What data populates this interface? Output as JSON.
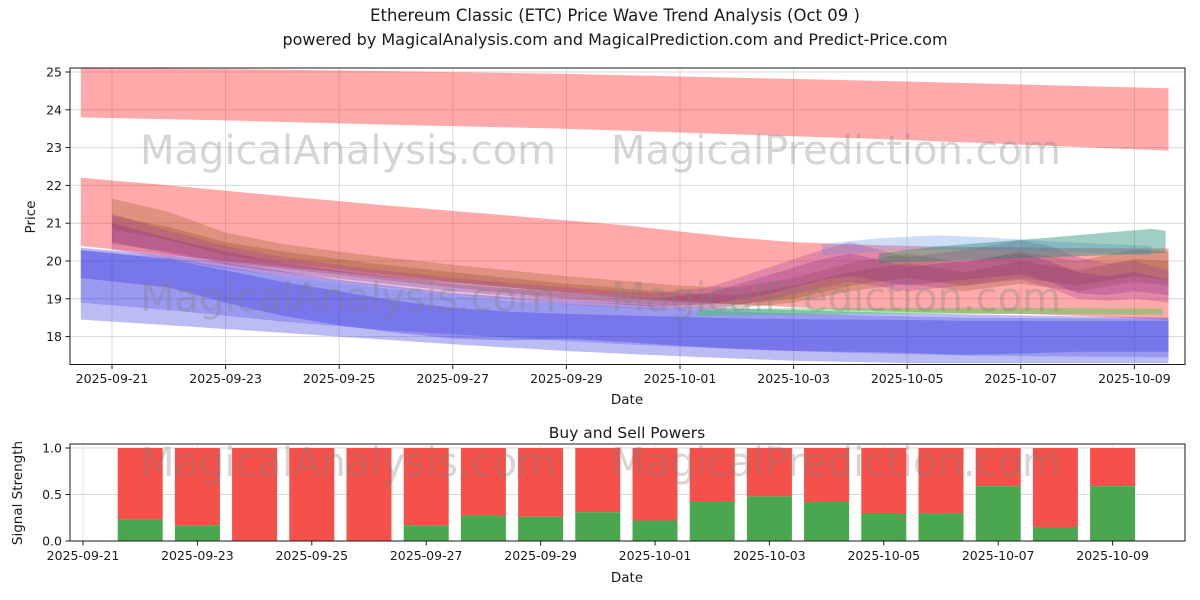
{
  "title": {
    "line1": "Ethereum Classic (ETC) Price Wave Trend Analysis (Oct 09 )",
    "line2": "powered by MagicalAnalysis.com and MagicalPrediction.com and Predict-Price.com"
  },
  "watermark": {
    "left": "MagicalAnalysis.com",
    "right": "MagicalPrediction.com"
  },
  "chart_data": [
    {
      "type": "area",
      "name": "price-wave-bands",
      "ylabel": "Price",
      "xlabel": "Date",
      "ylim": [
        17.25,
        25.1
      ],
      "yticks": [
        18,
        19,
        20,
        21,
        22,
        23,
        24,
        25
      ],
      "day_zero_date": "2025-09-21",
      "xtick_days": [
        0,
        2,
        4,
        6,
        8,
        10,
        12,
        14,
        16,
        18
      ],
      "xtick_labels": [
        "2025-09-21",
        "2025-09-23",
        "2025-09-25",
        "2025-09-27",
        "2025-09-29",
        "2025-10-01",
        "2025-10-03",
        "2025-10-05",
        "2025-10-07",
        "2025-10-09"
      ],
      "grid": true,
      "bands": [
        {
          "name": "upper-red-band",
          "color": "#ff1414",
          "opacity": 0.36,
          "points": [
            [
              -0.55,
              23.8,
              25.1
            ],
            [
              2,
              23.72,
              25.08
            ],
            [
              5,
              23.6,
              25.02
            ],
            [
              8,
              23.5,
              24.95
            ],
            [
              11,
              23.35,
              24.85
            ],
            [
              14,
              23.2,
              24.75
            ],
            [
              16.5,
              23.05,
              24.65
            ],
            [
              18.6,
              22.92,
              24.57
            ]
          ]
        },
        {
          "name": "mid-red-band",
          "color": "#ff1414",
          "opacity": 0.36,
          "points": [
            [
              -0.55,
              20.4,
              22.2
            ],
            [
              1,
              20.15,
              22.0
            ],
            [
              3,
              19.85,
              21.72
            ],
            [
              5,
              19.55,
              21.45
            ],
            [
              7,
              19.3,
              21.2
            ],
            [
              9,
              19.05,
              20.95
            ],
            [
              10,
              18.95,
              20.78
            ],
            [
              11,
              18.85,
              20.62
            ],
            [
              12,
              18.78,
              20.5
            ],
            [
              13,
              18.7,
              20.44
            ],
            [
              14,
              18.65,
              20.4
            ],
            [
              15,
              18.62,
              20.37
            ],
            [
              16,
              18.6,
              20.36
            ],
            [
              17,
              18.55,
              20.34
            ],
            [
              18.6,
              18.45,
              20.33
            ]
          ]
        },
        {
          "name": "outer-blue-band",
          "color": "#2222dd",
          "opacity": 0.3,
          "points": [
            [
              -0.55,
              18.45,
              20.35
            ],
            [
              1,
              18.3,
              20.15
            ],
            [
              2.5,
              18.15,
              19.85
            ],
            [
              4,
              18.0,
              19.5
            ],
            [
              6,
              17.8,
              19.15
            ],
            [
              8,
              17.62,
              18.95
            ],
            [
              10,
              17.48,
              18.8
            ],
            [
              12,
              17.36,
              18.7
            ],
            [
              14,
              17.3,
              18.62
            ],
            [
              16,
              17.3,
              18.56
            ],
            [
              18.6,
              17.3,
              18.5
            ]
          ]
        },
        {
          "name": "mid-blue-band",
          "color": "#2222dd",
          "opacity": 0.22,
          "points": [
            [
              -0.55,
              18.9,
              20.3
            ],
            [
              1,
              18.7,
              20.08
            ],
            [
              3,
              18.4,
              19.6
            ],
            [
              5,
              18.15,
              19.25
            ],
            [
              7,
              17.97,
              18.95
            ],
            [
              9,
              17.8,
              18.78
            ],
            [
              11,
              17.67,
              18.66
            ],
            [
              13,
              17.57,
              18.57
            ],
            [
              15,
              17.5,
              18.5
            ],
            [
              18.6,
              17.45,
              18.47
            ]
          ]
        },
        {
          "name": "inner-blue-band",
          "color": "#2222dd",
          "opacity": 0.28,
          "points": [
            [
              -0.55,
              19.55,
              20.28
            ],
            [
              1,
              19.3,
              20.05
            ],
            [
              2,
              18.9,
              19.75
            ],
            [
              3,
              18.55,
              19.45
            ],
            [
              4,
              18.3,
              19.2
            ],
            [
              5,
              18.1,
              18.95
            ],
            [
              6,
              17.95,
              18.76
            ],
            [
              7,
              17.9,
              18.66
            ],
            [
              8,
              17.94,
              18.6
            ],
            [
              9,
              17.86,
              18.56
            ],
            [
              10,
              17.76,
              18.52
            ],
            [
              11,
              17.68,
              18.48
            ],
            [
              12,
              17.62,
              18.46
            ],
            [
              13,
              17.6,
              18.45
            ],
            [
              14,
              17.57,
              18.44
            ],
            [
              15,
              17.52,
              18.42
            ],
            [
              16,
              17.55,
              18.42
            ],
            [
              17,
              17.6,
              18.41
            ],
            [
              18.6,
              17.6,
              18.42
            ]
          ]
        },
        {
          "name": "green-flat-band",
          "color": "#2ecc40",
          "opacity": 0.4,
          "points": [
            [
              10.3,
              18.55,
              18.73
            ],
            [
              12,
              18.58,
              18.75
            ],
            [
              14,
              18.6,
              18.76
            ],
            [
              16,
              18.6,
              18.76
            ],
            [
              18.5,
              18.58,
              18.74
            ]
          ]
        },
        {
          "name": "brown-band-outer",
          "color": "#9c5a1e",
          "opacity": 0.3,
          "points": [
            [
              0,
              20.85,
              21.65
            ],
            [
              1,
              20.55,
              21.3
            ],
            [
              2,
              20.15,
              20.75
            ],
            [
              3,
              19.95,
              20.45
            ],
            [
              4.5,
              19.7,
              20.15
            ],
            [
              6,
              19.45,
              19.9
            ],
            [
              8,
              19.15,
              19.6
            ],
            [
              10,
              18.9,
              19.35
            ],
            [
              11,
              18.85,
              19.3
            ],
            [
              12,
              19.0,
              19.55
            ],
            [
              13,
              19.35,
              19.95
            ],
            [
              14,
              19.55,
              20.2
            ],
            [
              15,
              19.35,
              19.95
            ],
            [
              16,
              19.55,
              20.25
            ],
            [
              17,
              19.35,
              20.0
            ],
            [
              18,
              19.6,
              20.3
            ],
            [
              18.6,
              19.5,
              20.25
            ]
          ]
        },
        {
          "name": "brown-band-inner",
          "color": "#7a4515",
          "opacity": 0.26,
          "points": [
            [
              0,
              20.45,
              21.2
            ],
            [
              1,
              20.25,
              20.9
            ],
            [
              2,
              19.95,
              20.5
            ],
            [
              3,
              19.8,
              20.25
            ],
            [
              4.5,
              19.55,
              19.95
            ],
            [
              6,
              19.3,
              19.7
            ],
            [
              8,
              19.0,
              19.4
            ],
            [
              10,
              18.8,
              19.15
            ],
            [
              11,
              18.75,
              19.1
            ],
            [
              12,
              18.9,
              19.35
            ],
            [
              13,
              19.2,
              19.7
            ],
            [
              14,
              19.4,
              19.95
            ],
            [
              15,
              19.2,
              19.7
            ],
            [
              16,
              19.4,
              20.0
            ],
            [
              17,
              19.2,
              19.75
            ],
            [
              18,
              19.45,
              20.05
            ],
            [
              18.6,
              19.35,
              20.0
            ]
          ]
        },
        {
          "name": "purple-band-outer",
          "color": "#a637a0",
          "opacity": 0.3,
          "points": [
            [
              0,
              20.3,
              21.25
            ],
            [
              1,
              20.05,
              20.8
            ],
            [
              2,
              19.8,
              20.4
            ],
            [
              3,
              19.6,
              20.1
            ],
            [
              4.5,
              19.35,
              19.8
            ],
            [
              6,
              19.1,
              19.55
            ],
            [
              8,
              18.85,
              19.3
            ],
            [
              9.5,
              18.72,
              19.15
            ],
            [
              10.5,
              18.72,
              19.3
            ],
            [
              11.5,
              18.95,
              19.8
            ],
            [
              12.5,
              19.3,
              20.3
            ],
            [
              13,
              19.45,
              20.5
            ],
            [
              14,
              19.2,
              20.1
            ],
            [
              15,
              19.35,
              20.3
            ],
            [
              16,
              19.5,
              20.55
            ],
            [
              16.5,
              19.3,
              20.4
            ],
            [
              17,
              19.0,
              20.1
            ],
            [
              17.5,
              18.95,
              19.95
            ],
            [
              18,
              19.0,
              20.0
            ],
            [
              18.6,
              18.9,
              19.75
            ]
          ]
        },
        {
          "name": "purple-band-inner",
          "color": "#8a2f8a",
          "opacity": 0.3,
          "points": [
            [
              0,
              20.5,
              21.0
            ],
            [
              1,
              20.2,
              20.6
            ],
            [
              2,
              19.9,
              20.25
            ],
            [
              3,
              19.7,
              19.95
            ],
            [
              4.5,
              19.45,
              19.65
            ],
            [
              6,
              19.2,
              19.4
            ],
            [
              8,
              18.95,
              19.15
            ],
            [
              9.5,
              18.8,
              19.0
            ],
            [
              10.5,
              18.85,
              19.15
            ],
            [
              11.5,
              19.1,
              19.6
            ],
            [
              12.5,
              19.5,
              20.05
            ],
            [
              13,
              19.6,
              20.2
            ],
            [
              14,
              19.35,
              19.85
            ],
            [
              15,
              19.5,
              20.0
            ],
            [
              16,
              19.65,
              20.2
            ],
            [
              16.5,
              19.45,
              20.0
            ],
            [
              17,
              19.15,
              19.7
            ],
            [
              17.5,
              19.1,
              19.6
            ],
            [
              18,
              19.2,
              19.7
            ],
            [
              18.6,
              19.1,
              19.5
            ]
          ]
        },
        {
          "name": "light-blue-band",
          "color": "#5b8fe8",
          "opacity": 0.3,
          "points": [
            [
              12.5,
              20.15,
              20.45
            ],
            [
              13.5,
              20.25,
              20.6
            ],
            [
              14.5,
              20.3,
              20.68
            ],
            [
              15.5,
              20.3,
              20.62
            ],
            [
              16.5,
              20.25,
              20.52
            ],
            [
              17.5,
              20.2,
              20.45
            ],
            [
              18.3,
              20.15,
              20.4
            ]
          ]
        },
        {
          "name": "teal-band",
          "color": "#1f8a70",
          "opacity": 0.42,
          "points": [
            [
              13.5,
              19.95,
              20.2
            ],
            [
              14.5,
              20.0,
              20.38
            ],
            [
              15.5,
              20.05,
              20.5
            ],
            [
              16.5,
              20.1,
              20.62
            ],
            [
              17.5,
              20.15,
              20.75
            ],
            [
              18.3,
              20.2,
              20.85
            ],
            [
              18.55,
              20.22,
              20.8
            ]
          ]
        }
      ]
    },
    {
      "type": "bar",
      "name": "buy-sell-powers",
      "title": "Buy and Sell Powers",
      "ylabel": "Signal Strength",
      "xlabel": "Date",
      "ylim": [
        0,
        1.05
      ],
      "yticks": [
        0,
        0.5,
        1.0
      ],
      "ytick_labels": [
        "0.0",
        "0.5",
        "1.0"
      ],
      "day_zero_date": "2025-09-21",
      "xtick_days": [
        0,
        2,
        4,
        6,
        8,
        10,
        12,
        14,
        16,
        18
      ],
      "xtick_labels": [
        "2025-09-21",
        "2025-09-23",
        "2025-09-25",
        "2025-09-27",
        "2025-09-29",
        "2025-10-01",
        "2025-10-03",
        "2025-10-05",
        "2025-10-07",
        "2025-10-09"
      ],
      "stacked": true,
      "categories": [
        "2025-09-22",
        "2025-09-23",
        "2025-09-24",
        "2025-09-25",
        "2025-09-26",
        "2025-09-27",
        "2025-09-28",
        "2025-09-29",
        "2025-09-30",
        "2025-10-01",
        "2025-10-02",
        "2025-10-03",
        "2025-10-04",
        "2025-10-05",
        "2025-10-06",
        "2025-10-07",
        "2025-10-08",
        "2025-10-09"
      ],
      "series": [
        {
          "name": "Buy",
          "color": "#4aa64f",
          "values": [
            0.23,
            0.17,
            0.0,
            0.0,
            0.0,
            0.17,
            0.27,
            0.26,
            0.31,
            0.22,
            0.42,
            0.48,
            0.42,
            0.29,
            0.3,
            0.59,
            0.15,
            0.59
          ]
        },
        {
          "name": "Sell",
          "color": "#f5504a",
          "values": [
            0.77,
            0.83,
            1.0,
            1.0,
            1.0,
            0.83,
            0.73,
            0.74,
            0.69,
            0.78,
            0.58,
            0.52,
            0.58,
            0.71,
            0.7,
            0.41,
            0.85,
            0.41
          ]
        }
      ]
    }
  ]
}
